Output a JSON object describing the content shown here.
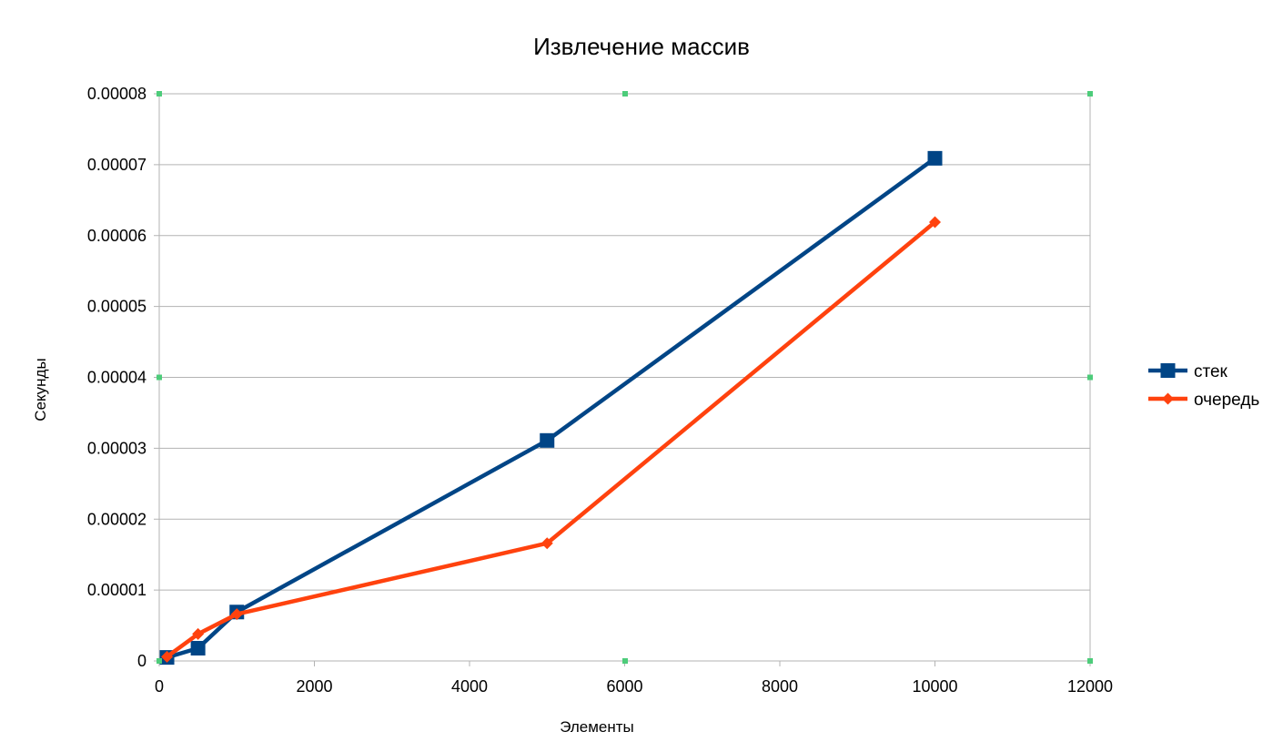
{
  "chart_data": {
    "type": "line",
    "title": "Извлечение массив",
    "xlabel": "Элементы",
    "ylabel": "Секунды",
    "xlim": [
      0,
      12000
    ],
    "ylim": [
      0,
      8e-05
    ],
    "x_ticks": [
      "0",
      "2000",
      "4000",
      "6000",
      "8000",
      "10000",
      "12000"
    ],
    "y_ticks": [
      "0",
      "0.00001",
      "0.00002",
      "0.00003",
      "0.00004",
      "0.00005",
      "0.00006",
      "0.00007",
      "0.00008"
    ],
    "grid": true,
    "legend_position": "right",
    "series": [
      {
        "name": "стек",
        "color": "#004586",
        "marker": "square",
        "points": [
          {
            "x": 100,
            "y": 5e-07
          },
          {
            "x": 500,
            "y": 1.8e-06
          },
          {
            "x": 1000,
            "y": 6.9e-06
          },
          {
            "x": 5000,
            "y": 3.11e-05
          },
          {
            "x": 10000,
            "y": 7.09e-05
          }
        ]
      },
      {
        "name": "очередь",
        "color": "#ff420e",
        "marker": "diamond",
        "points": [
          {
            "x": 100,
            "y": 6e-07
          },
          {
            "x": 500,
            "y": 3.8e-06
          },
          {
            "x": 1000,
            "y": 6.6e-06
          },
          {
            "x": 5000,
            "y": 1.66e-05
          },
          {
            "x": 10000,
            "y": 6.19e-05
          }
        ]
      }
    ]
  }
}
